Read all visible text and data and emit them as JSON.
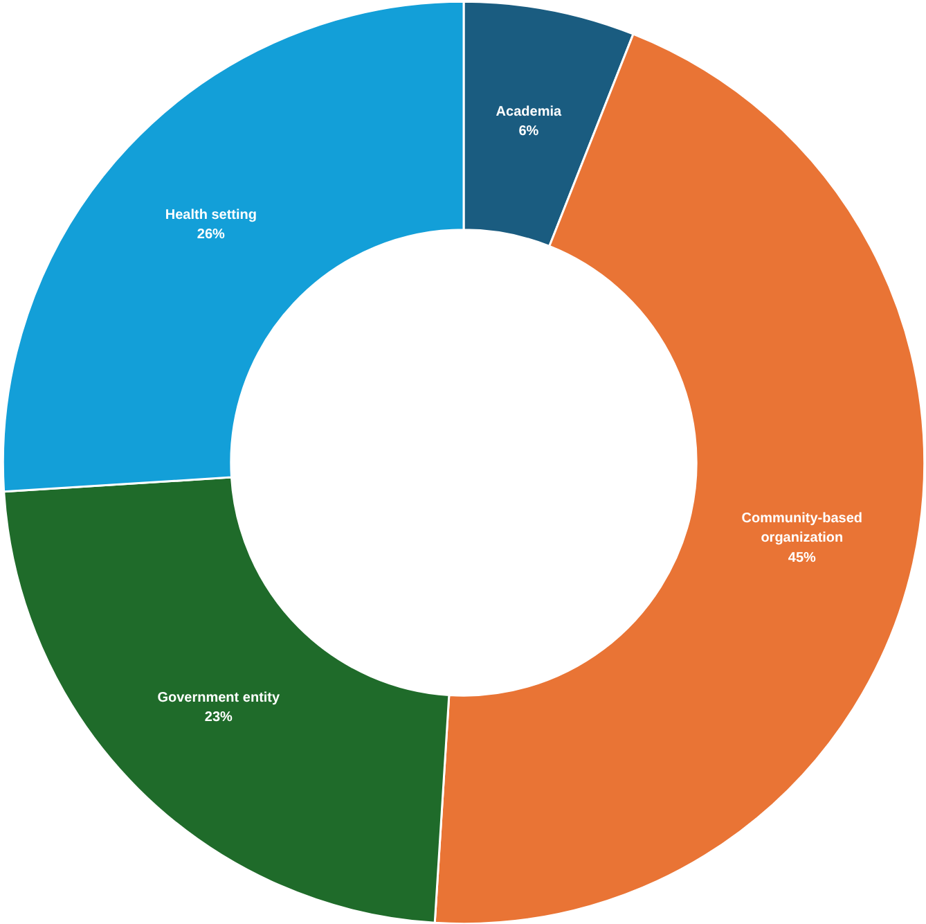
{
  "chart_data": {
    "type": "donut",
    "categories": [
      "Academia",
      "Community-based organization",
      "Government entity",
      "Health setting"
    ],
    "values": [
      6,
      45,
      23,
      26
    ],
    "value_labels": [
      "6%",
      "45%",
      "23%",
      "26%"
    ],
    "colors": [
      "#1a5c80",
      "#e97435",
      "#1f6b2a",
      "#139fd8"
    ]
  }
}
